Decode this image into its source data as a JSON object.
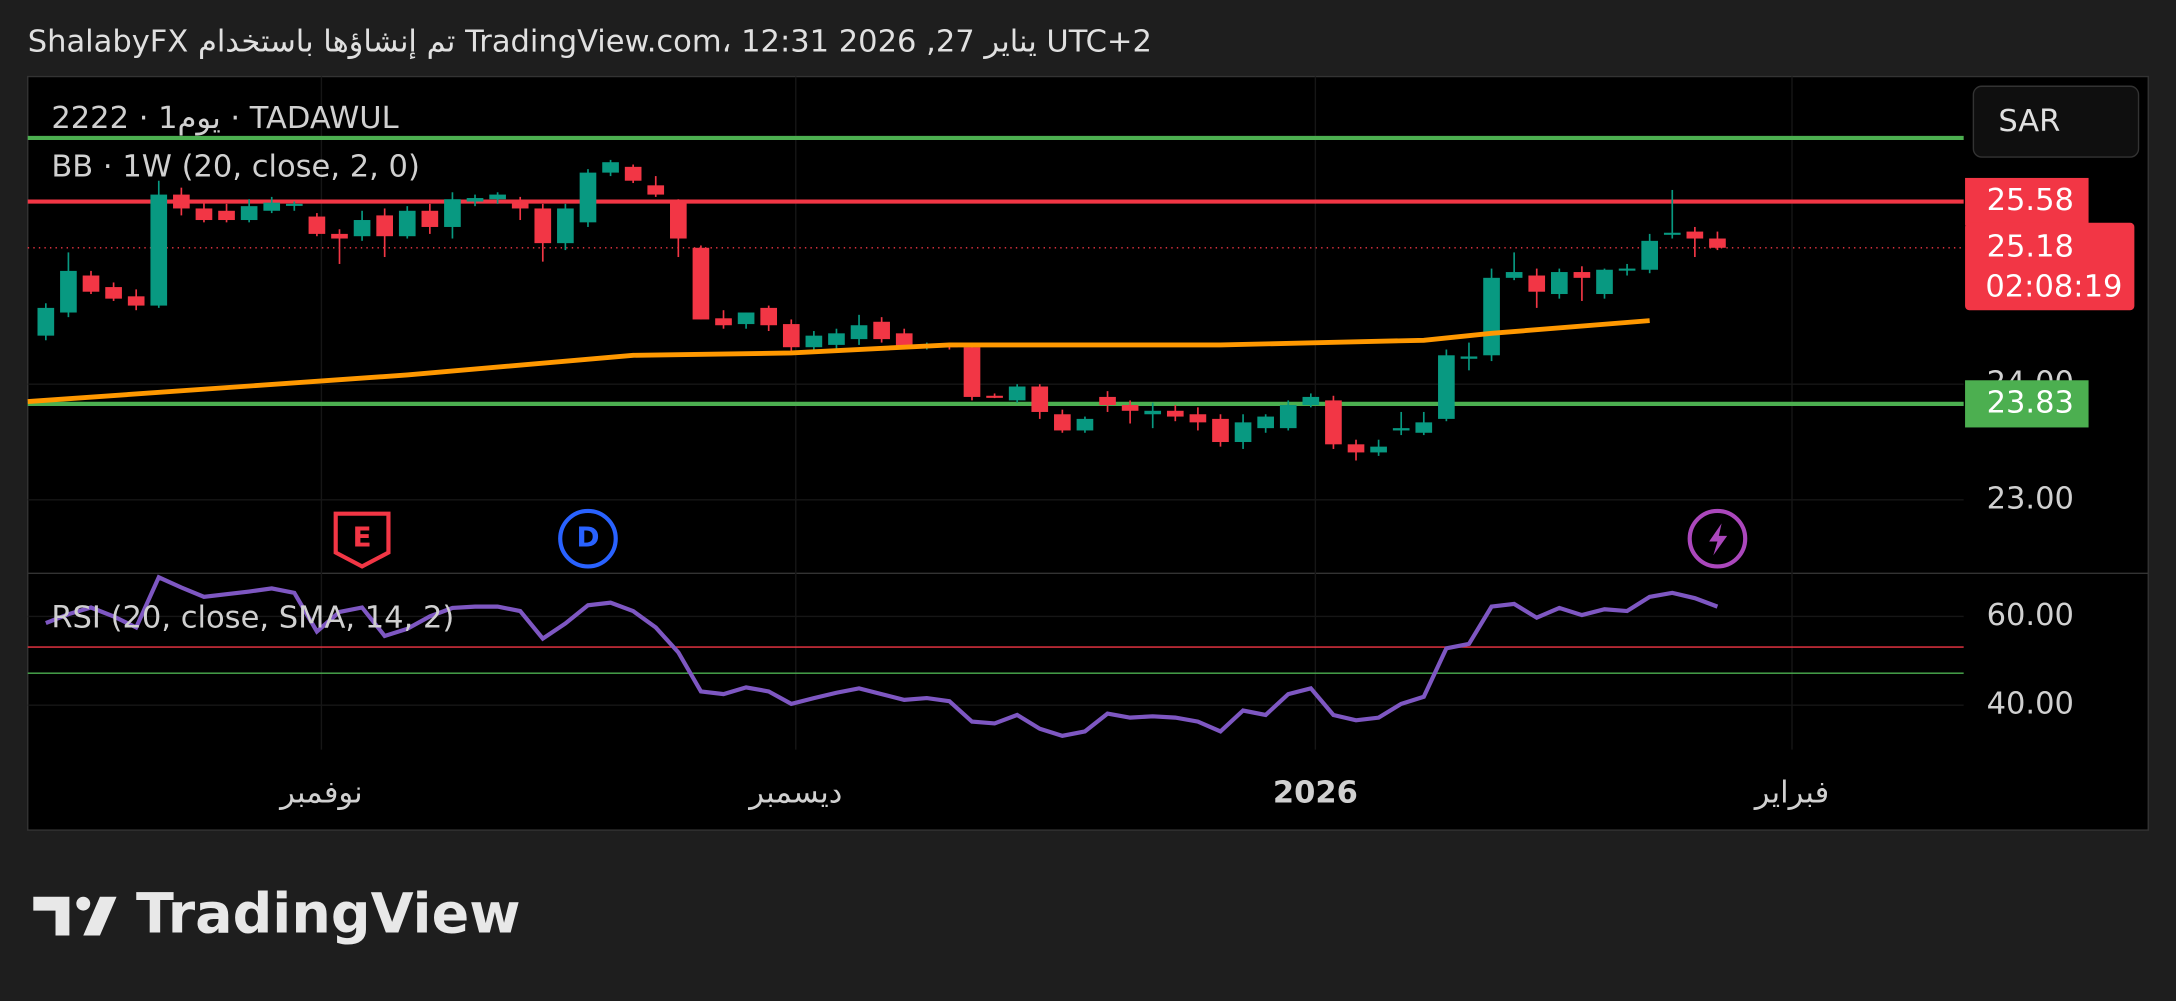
{
  "chart_data": {
    "type": "candlestick",
    "title": "ShalabyFX تم إنشاؤها باستخدام TradingView.com، 12:31 2026 ,27 يناير UTC+2",
    "symbol": "2222 · 1يوم · TADAWUL",
    "currency": "SAR",
    "xlim": [
      -0.8,
      84.9
    ],
    "xticks": [
      {
        "value": 12.2,
        "label": "نوفمبر"
      },
      {
        "value": 33.2,
        "label": "ديسمبر"
      },
      {
        "value": 56.2,
        "label": "2026"
      },
      {
        "value": 77.3,
        "label": "فبراير"
      }
    ],
    "ylim": [
      22.364,
      26.637
    ],
    "yticks": [
      {
        "value": 23,
        "label": "23.00"
      },
      {
        "value": 24,
        "label": "24.00"
      }
    ],
    "up_color": "#089981",
    "down_color": "#f23645",
    "open": [
      24.42,
      24.62,
      24.94,
      24.84,
      24.76,
      24.68,
      25.64,
      25.52,
      25.5,
      25.42,
      25.5,
      25.55,
      25.45,
      25.3,
      25.28,
      25.46,
      25.28,
      25.5,
      25.36,
      25.58,
      25.6,
      25.58,
      25.52,
      25.22,
      25.4,
      25.83,
      25.88,
      25.72,
      25.57,
      25.18,
      24.57,
      24.52,
      24.66,
      24.52,
      24.32,
      24.34,
      24.39,
      24.54,
      24.44,
      24.33,
      24.34,
      24.32,
      23.9,
      23.86,
      23.98,
      23.74,
      23.6,
      23.89,
      23.82,
      23.74,
      23.77,
      23.74,
      23.7,
      23.5,
      23.62,
      23.62,
      23.82,
      23.86,
      23.48,
      23.41,
      23.6,
      23.58,
      23.7,
      24.22,
      24.25,
      24.92,
      24.94,
      24.78,
      24.97,
      24.78,
      24.99,
      24.99,
      25.3,
      25.32,
      25.26
    ],
    "high": [
      24.7,
      25.14,
      24.98,
      24.88,
      24.82,
      25.76,
      25.7,
      25.58,
      25.56,
      25.6,
      25.62,
      25.58,
      25.48,
      25.34,
      25.5,
      25.52,
      25.54,
      25.56,
      25.66,
      25.64,
      25.66,
      25.62,
      25.56,
      25.56,
      25.86,
      25.94,
      25.9,
      25.8,
      25.6,
      25.2,
      24.64,
      24.62,
      24.68,
      24.56,
      24.46,
      24.48,
      24.6,
      24.58,
      24.48,
      24.36,
      24.36,
      24.34,
      23.92,
      24.0,
      24.0,
      23.78,
      23.72,
      23.94,
      23.86,
      23.84,
      23.82,
      23.8,
      23.74,
      23.74,
      23.74,
      23.86,
      23.92,
      23.9,
      23.52,
      23.52,
      23.76,
      23.76,
      24.3,
      24.36,
      25.0,
      25.14,
      25.0,
      25.0,
      25.02,
      25.0,
      25.04,
      25.3,
      25.68,
      25.36,
      25.32
    ],
    "low": [
      24.38,
      24.58,
      24.78,
      24.72,
      24.64,
      24.66,
      25.46,
      25.4,
      25.4,
      25.4,
      25.48,
      25.5,
      25.28,
      25.04,
      25.24,
      25.1,
      25.26,
      25.3,
      25.26,
      25.54,
      25.56,
      25.42,
      25.06,
      25.16,
      25.36,
      25.8,
      25.74,
      25.62,
      25.1,
      24.56,
      24.48,
      24.48,
      24.46,
      24.28,
      24.28,
      24.3,
      24.34,
      24.36,
      24.3,
      24.3,
      24.3,
      23.86,
      23.88,
      23.84,
      23.7,
      23.58,
      23.58,
      23.76,
      23.66,
      23.62,
      23.68,
      23.6,
      23.46,
      23.44,
      23.58,
      23.6,
      23.8,
      23.44,
      23.34,
      23.38,
      23.56,
      23.56,
      23.68,
      24.12,
      24.2,
      24.9,
      24.66,
      24.74,
      24.72,
      24.74,
      24.94,
      24.96,
      25.26,
      25.1,
      25.16
    ],
    "close": [
      24.66,
      24.98,
      24.8,
      24.74,
      24.68,
      25.64,
      25.52,
      25.42,
      25.42,
      25.54,
      25.57,
      25.56,
      25.3,
      25.26,
      25.42,
      25.28,
      25.5,
      25.36,
      25.6,
      25.61,
      25.64,
      25.52,
      25.22,
      25.52,
      25.83,
      25.92,
      25.76,
      25.64,
      25.26,
      24.56,
      24.51,
      24.62,
      24.51,
      24.32,
      24.42,
      24.44,
      24.51,
      24.39,
      24.32,
      24.34,
      24.32,
      23.89,
      23.89,
      23.98,
      23.76,
      23.6,
      23.7,
      23.82,
      23.77,
      23.77,
      23.72,
      23.67,
      23.5,
      23.67,
      23.72,
      23.82,
      23.89,
      23.48,
      23.41,
      23.46,
      23.62,
      23.67,
      24.25,
      24.24,
      24.92,
      24.97,
      24.8,
      24.97,
      24.92,
      24.99,
      25.0,
      25.24,
      25.31,
      25.26,
      25.18
    ],
    "bb": {
      "name": "BB · 1W (20, close, 2, 0)",
      "color": "#ff9800",
      "x": [
        -0.8,
        16,
        26,
        33,
        40,
        52,
        61,
        64,
        71
      ],
      "values": [
        23.85,
        24.08,
        24.25,
        24.27,
        24.34,
        24.34,
        24.38,
        24.44,
        24.55
      ]
    },
    "levels": [
      {
        "value": 26.13,
        "color": "#4caf50",
        "show_label": false
      },
      {
        "value": 25.58,
        "color": "#f23645",
        "show_label": true
      },
      {
        "value": 23.83,
        "color": "#4caf50",
        "show_label": true
      }
    ],
    "last": {
      "value": 25.18,
      "countdown": "02:08:19",
      "color": "#f23645"
    },
    "events": [
      {
        "x": 14,
        "label": "E",
        "kind": "earnings"
      },
      {
        "x": 24,
        "label": "D",
        "kind": "dividend"
      },
      {
        "x": 74,
        "kind": "split"
      }
    ],
    "rsi": {
      "name": "RSI (20, close, SMA, 14, 2)",
      "color": "#7e57c2",
      "ylim": [
        30,
        69.69
      ],
      "yticks": [
        {
          "value": 60,
          "label": "60.00"
        },
        {
          "value": 40,
          "label": "40.00"
        }
      ],
      "levels": [
        {
          "value": 53.1,
          "color": "#f23645"
        },
        {
          "value": 47.2,
          "color": "#4caf50"
        }
      ],
      "values": [
        58.5,
        60.5,
        62,
        60,
        57.5,
        68.8,
        66.5,
        64.4,
        65,
        65.6,
        66.3,
        65.3,
        56.6,
        61,
        62,
        55.6,
        57.2,
        60,
        61.9,
        62.2,
        62.2,
        61.2,
        55,
        58.4,
        62.5,
        63.1,
        61.2,
        57.5,
        51.9,
        43.1,
        42.5,
        44,
        43.1,
        40.3,
        41.6,
        42.8,
        43.8,
        42.5,
        41.2,
        41.6,
        40.9,
        36.3,
        35.9,
        37.8,
        34.7,
        33.1,
        34.1,
        38.1,
        37.2,
        37.5,
        37.2,
        36.3,
        34.1,
        38.8,
        37.8,
        42.5,
        43.8,
        37.8,
        36.6,
        37.2,
        40.3,
        41.9,
        52.8,
        53.8,
        62.2,
        62.8,
        59.7,
        61.9,
        60.3,
        61.6,
        61.2,
        64.4,
        65.3,
        64.1,
        62.2
      ]
    }
  },
  "footer": {
    "brand": "TradingView"
  }
}
